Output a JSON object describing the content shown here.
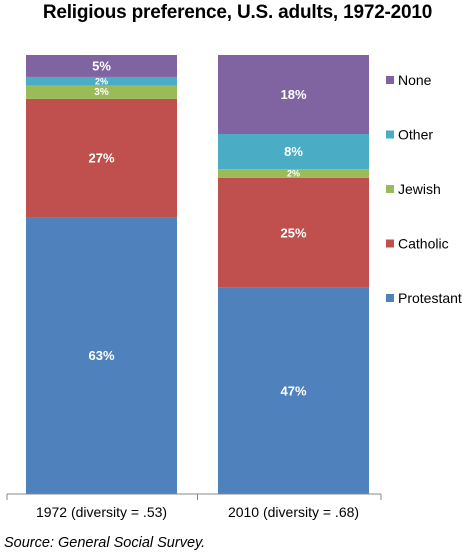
{
  "chart_data": {
    "type": "bar",
    "stacked": true,
    "title": "Religious preference, U.S. adults, 1972-2010",
    "categories": [
      "1972 (diversity = .53)",
      "2010 (diversity = .68)"
    ],
    "series": [
      {
        "name": "Protestant",
        "values": [
          63,
          47
        ],
        "labels": [
          "63%",
          "47%"
        ],
        "color": "#4f81bd"
      },
      {
        "name": "Catholic",
        "values": [
          27,
          25
        ],
        "labels": [
          "27%",
          "25%"
        ],
        "color": "#c0504d"
      },
      {
        "name": "Jewish",
        "values": [
          3,
          2
        ],
        "labels": [
          "3%",
          "2%"
        ],
        "color": "#9bbb59"
      },
      {
        "name": "Other",
        "values": [
          2,
          8
        ],
        "labels": [
          "2%",
          "8%"
        ],
        "color": "#4bacc6"
      },
      {
        "name": "None",
        "values": [
          5,
          18
        ],
        "labels": [
          "5%",
          "18%"
        ],
        "color": "#8064a2"
      }
    ],
    "ylim": [
      0,
      100
    ],
    "grid": false,
    "legend": "right"
  },
  "source": "Source: General Social Survey."
}
